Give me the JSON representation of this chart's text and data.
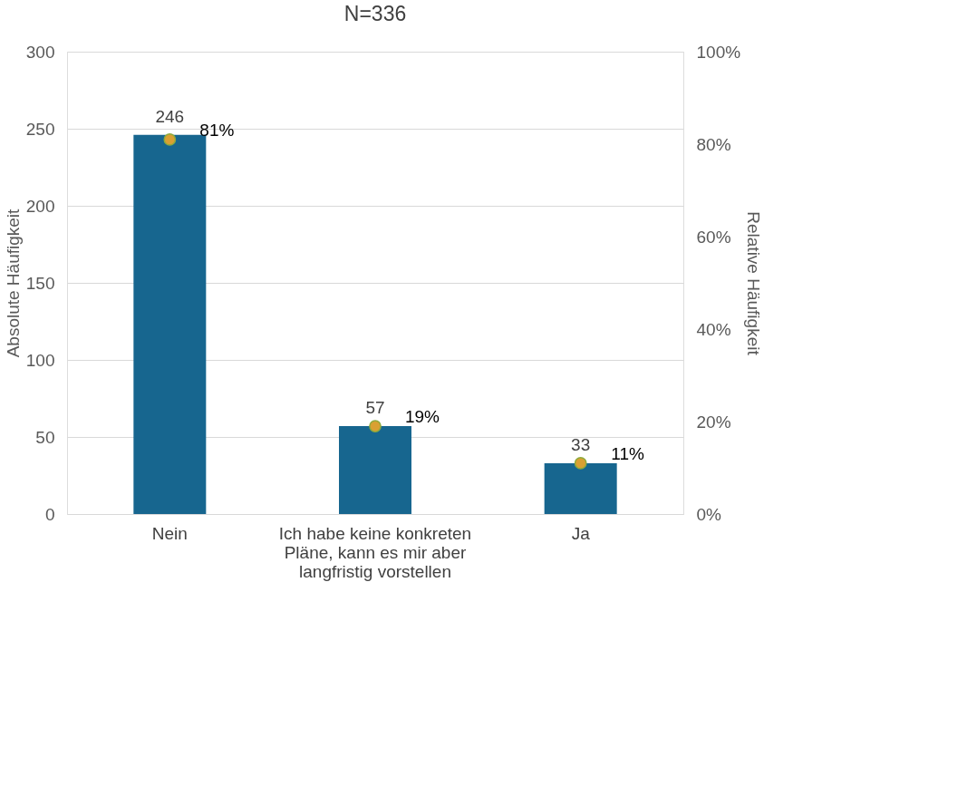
{
  "chart_data": {
    "type": "bar",
    "title": "N=336",
    "categories": [
      "Nein",
      "Ich habe keine konkreten Pläne, kann es mir aber langfristig vorstellen",
      "Ja"
    ],
    "series": [
      {
        "color": "#17668f",
        "values": [
          246,
          57,
          33
        ],
        "data_labels": true
      },
      {
        "type": "scatter",
        "axis": "y2",
        "color": "#d9a032",
        "marker": "circle",
        "values": [
          81,
          19,
          11
        ],
        "value_labels": [
          "81%",
          "19%",
          "11%"
        ]
      }
    ],
    "ylabel": "Absolute Häufigkeit",
    "y2label": "Relative Häufigkeit",
    "ylim": [
      0,
      300
    ],
    "yticks": [
      0,
      50,
      100,
      150,
      200,
      250,
      300
    ],
    "y2lim": [
      0,
      100
    ],
    "y2ticks": [
      {
        "value": 0,
        "label": "0%"
      },
      {
        "value": 20,
        "label": "20%"
      },
      {
        "value": 40,
        "label": "40%"
      },
      {
        "value": 60,
        "label": "60%"
      },
      {
        "value": 80,
        "label": "80%"
      },
      {
        "value": 100,
        "label": "100%"
      }
    ],
    "grid": "y"
  }
}
